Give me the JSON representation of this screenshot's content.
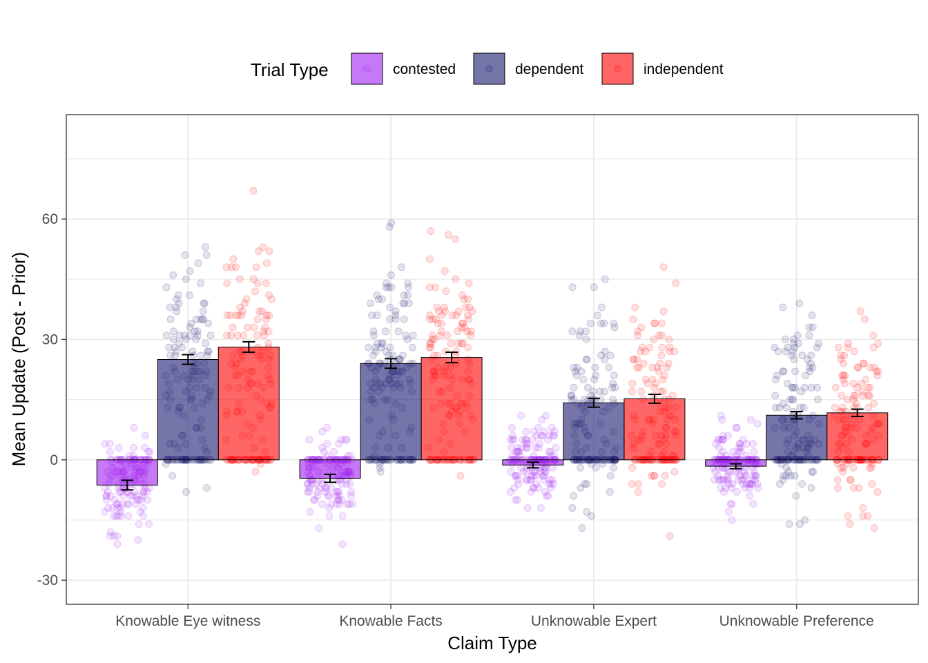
{
  "chart_data": {
    "type": "bar",
    "xlabel": "Claim Type",
    "ylabel": "Mean Update (Post - Prior)",
    "ylim": [
      -36,
      86
    ],
    "yticks": [
      -30,
      0,
      30,
      60
    ],
    "grid": true,
    "legend": {
      "title": "Trial Type",
      "placement": "top"
    },
    "categories": [
      "Knowable Eye witness",
      "Knowable Facts",
      "Unknowable Expert",
      "Unknowable Preference"
    ],
    "series": [
      {
        "name": "contested",
        "color": "#a020f0",
        "values": [
          -6.3,
          -4.6,
          -1.3,
          -1.6
        ],
        "errors": [
          1.2,
          1.0,
          0.7,
          0.6
        ]
      },
      {
        "name": "dependent",
        "color": "#191970",
        "values": [
          25.0,
          24.0,
          14.2,
          11.1
        ],
        "errors": [
          1.2,
          1.2,
          1.1,
          0.9
        ]
      },
      {
        "name": "independent",
        "color": "#ff0000",
        "values": [
          28.1,
          25.5,
          15.2,
          11.7
        ],
        "errors": [
          1.3,
          1.3,
          1.1,
          0.9
        ]
      }
    ]
  }
}
